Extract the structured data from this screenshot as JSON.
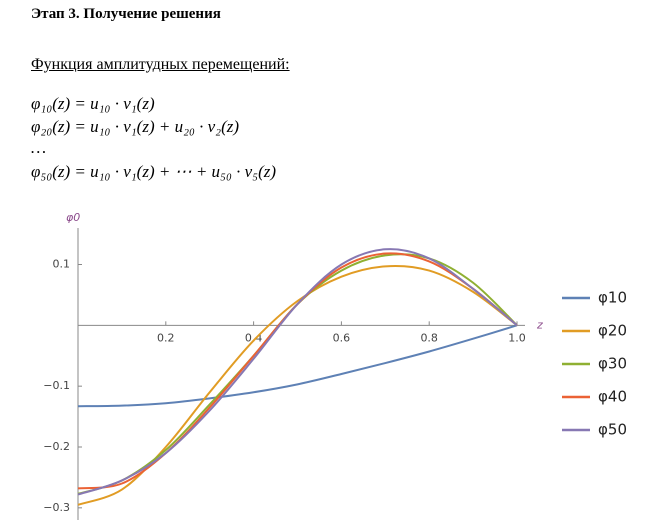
{
  "heading": "Этап 3. Получение решения",
  "subheading": "Функция амплитудных перемещений:",
  "formulas": [
    "φ₁₀(z) = u₁₀ · v₁(z)",
    "φ₂₀(z) = u₁₀ · v₁(z) + u₂₀ · v₂(z)",
    "…",
    "φ₅₀(z) = u₁₀ · v₁(z) + ⋯ + u₅₀ · v₅(z)"
  ],
  "chart_data": {
    "type": "line",
    "x_label": "z",
    "y_label": "φ0",
    "x": [
      0,
      0.1,
      0.2,
      0.3,
      0.4,
      0.5,
      0.6,
      0.7,
      0.8,
      0.9,
      1.0
    ],
    "xlim": [
      0,
      1.0
    ],
    "ylim": [
      -0.32,
      0.16
    ],
    "xticks": [
      0.2,
      0.4,
      0.6,
      0.8,
      {
        "value": 1.0,
        "label": "1.0"
      }
    ],
    "yticks": [
      0.1,
      {
        "value": -0.1,
        "label": "−0.1"
      },
      {
        "value": -0.2,
        "label": "−0.2"
      },
      {
        "value": -0.3,
        "label": "−0.3"
      }
    ],
    "series": [
      {
        "name": "φ10",
        "color": "#5e81b5",
        "values": [
          -0.133,
          -0.132,
          -0.128,
          -0.12,
          -0.11,
          -0.097,
          -0.08,
          -0.062,
          -0.043,
          -0.022,
          0
        ]
      },
      {
        "name": "φ20",
        "color": "#e19c24",
        "values": [
          -0.295,
          -0.27,
          -0.2,
          -0.11,
          -0.025,
          0.04,
          0.08,
          0.097,
          0.09,
          0.055,
          0
        ]
      },
      {
        "name": "φ30",
        "color": "#8fb032",
        "values": [
          -0.277,
          -0.255,
          -0.205,
          -0.13,
          -0.05,
          0.035,
          0.09,
          0.115,
          0.11,
          0.07,
          0
        ]
      },
      {
        "name": "φ40",
        "color": "#eb6235",
        "values": [
          -0.268,
          -0.26,
          -0.21,
          -0.135,
          -0.05,
          0.035,
          0.095,
          0.118,
          0.105,
          0.06,
          0
        ]
      },
      {
        "name": "φ50",
        "color": "#8778b3",
        "values": [
          -0.278,
          -0.255,
          -0.21,
          -0.14,
          -0.055,
          0.035,
          0.1,
          0.125,
          0.11,
          0.06,
          0
        ]
      }
    ]
  }
}
